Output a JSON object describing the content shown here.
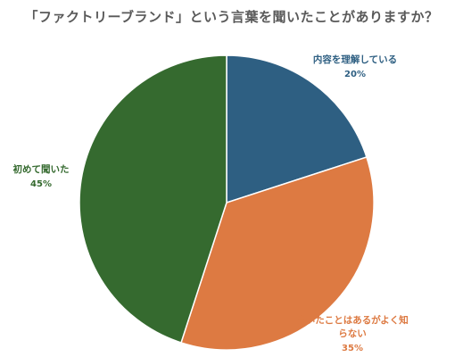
{
  "chart_data": {
    "type": "pie",
    "title": "「ファクトリーブランド」という言葉を聞いたことがありますか？",
    "slices": [
      {
        "label": "内容を理解している",
        "value": 20,
        "value_label": "20%",
        "color": "#2e5f82"
      },
      {
        "label": "聞いたことはあるがよく知らない",
        "value": 35,
        "value_label": "35%",
        "color": "#dd7a42"
      },
      {
        "label": "初めて聞いた",
        "value": 45,
        "value_label": "45%",
        "color": "#356a2f"
      }
    ],
    "start_angle": "12 o'clock",
    "direction": "clockwise",
    "legend": "none"
  }
}
